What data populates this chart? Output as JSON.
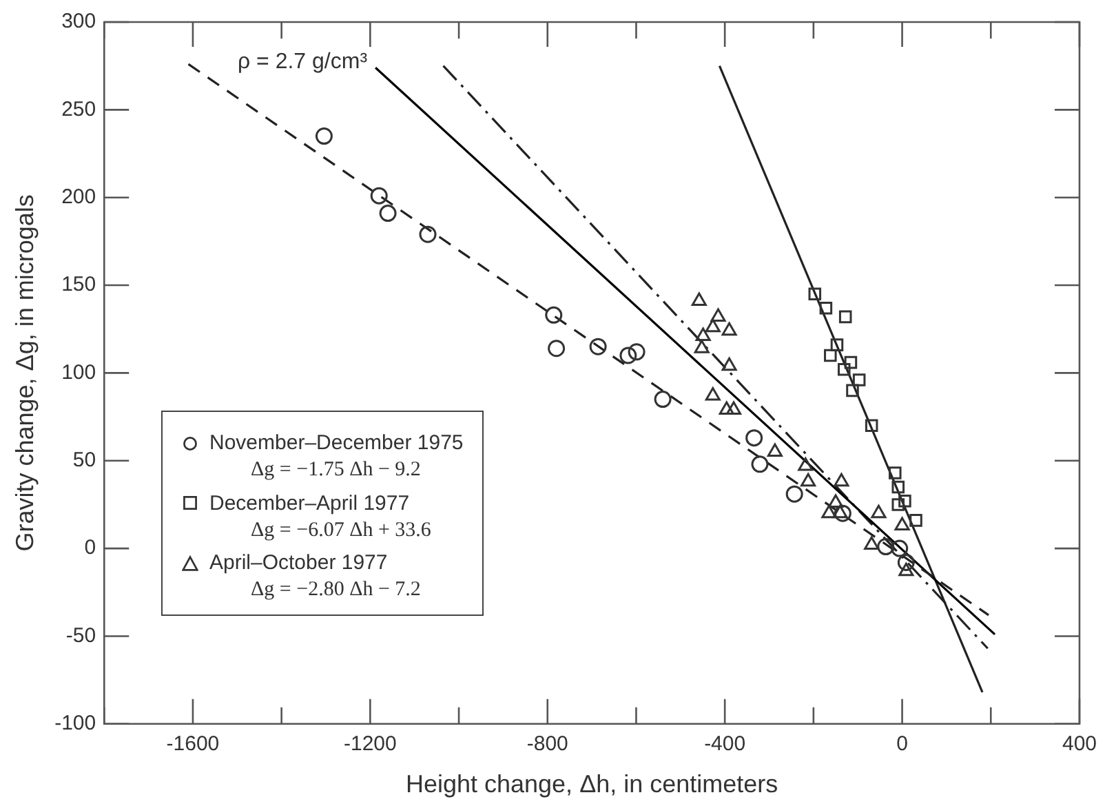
{
  "chart_data": {
    "type": "scatter",
    "xlabel": "Height change, Δh, in centimeters",
    "ylabel": "Gravity change, Δg, in microgals",
    "xlim": [
      -1800,
      400
    ],
    "ylim": [
      -100,
      300
    ],
    "xticks": [
      {
        "value": -1800,
        "label": null
      },
      -1600,
      {
        "value": -1400,
        "label": null
      },
      -1200,
      {
        "value": -1000,
        "label": null
      },
      -800,
      {
        "value": -600,
        "label": null
      },
      -400,
      {
        "value": -200,
        "label": null
      },
      0,
      {
        "value": 200,
        "label": null
      },
      400
    ],
    "yticks": [
      -100,
      -50,
      0,
      50,
      100,
      150,
      200,
      250,
      300
    ],
    "grid": false,
    "legend": "bottom left",
    "annotations": [
      "Δg = −1.75 Δh − 9.2",
      "Δg = −6.07 Δh + 33.6",
      "Δg = −2.80 Δh − 7.2",
      {
        "text": "ρ = 2.7 g/cm³",
        "x": -1188,
        "y": 274
      }
    ],
    "series": [
      {
        "name": "November–December 1975",
        "color": "#333333",
        "marker": "circle",
        "x": [
          -1304,
          -1180,
          -1160,
          -1070,
          -786,
          -780,
          -686,
          -618,
          -599,
          -540,
          -334,
          -321,
          -243,
          -134,
          -37,
          -6,
          9
        ],
        "values": [
          235,
          201,
          191,
          179,
          133,
          114,
          115,
          110,
          112,
          85,
          63,
          48,
          31,
          20,
          1,
          0,
          -8
        ]
      },
      {
        "name": "December–April 1977",
        "color": "#333333",
        "marker": "square",
        "x": [
          -197,
          -172,
          -128,
          -147,
          -162,
          -131,
          -116,
          -97,
          -112,
          -69,
          -16,
          -9,
          6,
          -9,
          31
        ],
        "values": [
          145,
          137,
          132,
          116,
          110,
          102,
          106,
          96,
          90,
          70,
          43,
          35,
          27,
          25,
          16
        ]
      },
      {
        "name": "April–October 1977",
        "color": "#333333",
        "marker": "triangle",
        "x": [
          -458,
          -415,
          -427,
          -390,
          -449,
          -452,
          -390,
          -427,
          -396,
          -380,
          -287,
          -218,
          -212,
          -137,
          -150,
          -165,
          -140,
          -53,
          -69,
          0,
          9
        ],
        "values": [
          141,
          132,
          126,
          124,
          121,
          114,
          104,
          87,
          79,
          79,
          55,
          47,
          38,
          38,
          26,
          20,
          20,
          20,
          2,
          13,
          -13
        ]
      },
      {
        "type": "line",
        "color": "#222222",
        "line_style": "dashed",
        "marker": "none",
        "x": [
          -1610,
          195
        ],
        "values": [
          276,
          -38
        ]
      },
      {
        "type": "line",
        "color": "#000000",
        "line_style": "solid",
        "marker": "none",
        "x": [
          -1188,
          209
        ],
        "values": [
          274,
          -49
        ]
      },
      {
        "type": "line",
        "color": "#222222",
        "line_style": "dashdot",
        "marker": "none",
        "x": [
          -1035,
          193
        ],
        "values": [
          275,
          -57
        ]
      },
      {
        "type": "line",
        "color": "#222222",
        "line_style": "solid",
        "marker": "none",
        "x": [
          -412,
          181
        ],
        "values": [
          275,
          -82
        ]
      }
    ]
  }
}
